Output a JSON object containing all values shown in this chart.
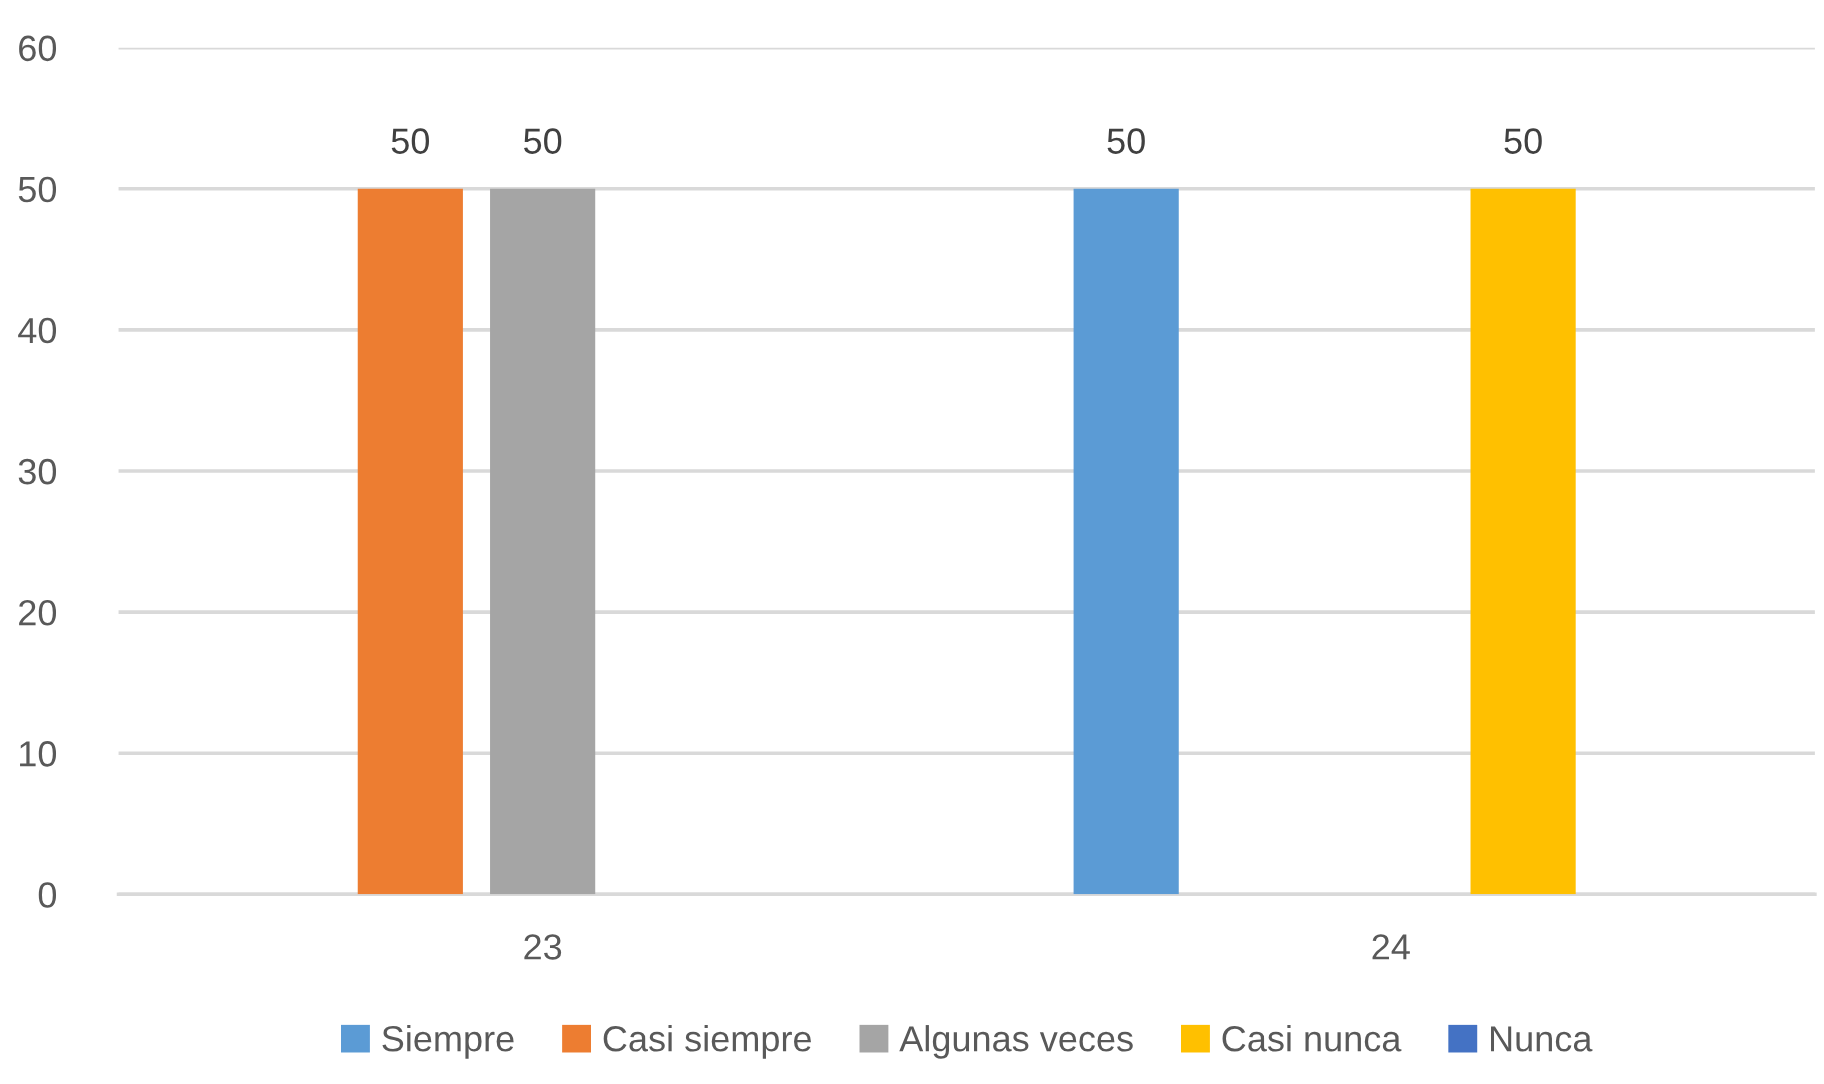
{
  "chart_data": {
    "type": "bar",
    "categories": [
      "23",
      "24"
    ],
    "series": [
      {
        "name": "Siempre",
        "color": "#5b9bd5",
        "values": [
          null,
          50
        ],
        "value_labels": [
          null,
          "50"
        ]
      },
      {
        "name": "Casi siempre",
        "color": "#ed7d31",
        "values": [
          50,
          null
        ],
        "value_labels": [
          "50",
          null
        ]
      },
      {
        "name": "Algunas veces",
        "color": "#a5a5a5",
        "values": [
          50,
          null
        ],
        "value_labels": [
          "50",
          null
        ]
      },
      {
        "name": "Casi nunca",
        "color": "#ffc000",
        "values": [
          null,
          50
        ],
        "value_labels": [
          null,
          "50"
        ]
      },
      {
        "name": "Nunca",
        "color": "#4472c4",
        "values": [
          null,
          null
        ],
        "value_labels": [
          null,
          null
        ]
      }
    ],
    "ylim": [
      0,
      60
    ],
    "yticks": [
      0,
      10,
      20,
      30,
      40,
      50,
      60
    ],
    "grid": "y",
    "legend": "bottom"
  }
}
